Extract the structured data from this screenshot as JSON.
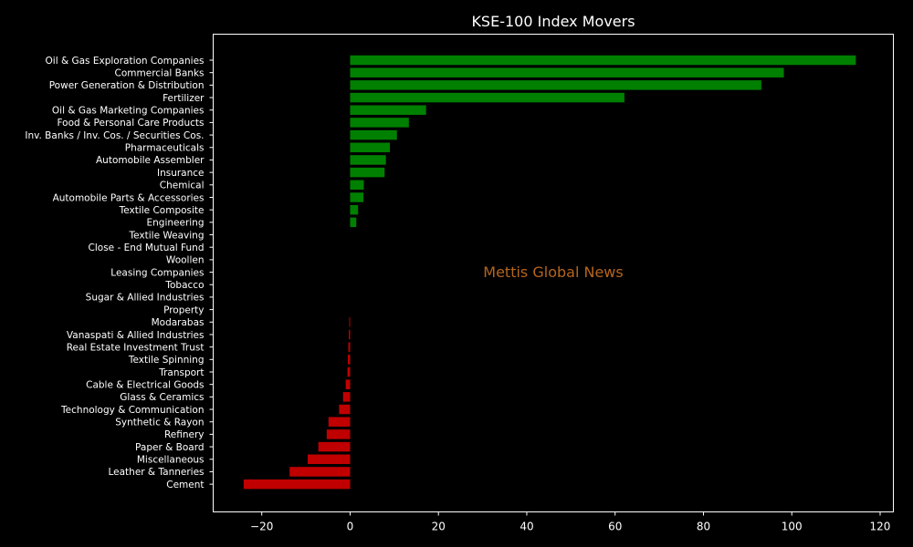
{
  "chart_data": {
    "type": "bar",
    "orientation": "horizontal",
    "title": "KSE-100 Index Movers",
    "xlabel": "",
    "ylabel": "",
    "xlim": [
      -31,
      123
    ],
    "xticks": [
      -20,
      0,
      20,
      40,
      60,
      80,
      100,
      120
    ],
    "xtick_labels": [
      "−20",
      "0",
      "20",
      "40",
      "60",
      "80",
      "100",
      "120"
    ],
    "grid": false,
    "categories": [
      "Oil & Gas Exploration Companies",
      "Commercial Banks",
      "Power Generation & Distribution",
      "Fertilizer",
      "Oil & Gas Marketing Companies",
      "Food & Personal Care Products",
      "Inv. Banks / Inv. Cos. / Securities Cos.",
      "Pharmaceuticals",
      "Automobile Assembler",
      "Insurance",
      "Chemical",
      "Automobile Parts & Accessories",
      "Textile Composite",
      "Engineering",
      "Textile Weaving",
      "Close - End Mutual Fund",
      "Woollen",
      "Leasing Companies",
      "Tobacco",
      "Sugar & Allied Industries",
      "Property",
      "Modarabas",
      "Vanaspati & Allied Industries",
      "Real Estate Investment Trust",
      "Textile Spinning",
      "Transport",
      "Cable & Electrical Goods",
      "Glass & Ceramics",
      "Technology & Communication",
      "Synthetic & Rayon",
      "Refinery",
      "Paper & Board",
      "Miscellaneous",
      "Leather & Tanneries",
      "Cement"
    ],
    "values": [
      114.5,
      98.2,
      93.1,
      62.1,
      17.2,
      13.3,
      10.6,
      9.0,
      8.1,
      7.8,
      3.1,
      3.0,
      1.8,
      1.4,
      0,
      0,
      0,
      0,
      0,
      0,
      0,
      -0.2,
      -0.3,
      -0.4,
      -0.5,
      -0.6,
      -1.0,
      -1.6,
      -2.5,
      -4.9,
      -5.3,
      -7.2,
      -9.6,
      -13.7,
      -24.1
    ],
    "colors": {
      "positive": "#008000",
      "negative": "#c00000",
      "background": "#000000",
      "axes": "#ffffff",
      "text": "#ffffff",
      "watermark": "#b5651d"
    },
    "watermark": "Mettis Global News"
  }
}
